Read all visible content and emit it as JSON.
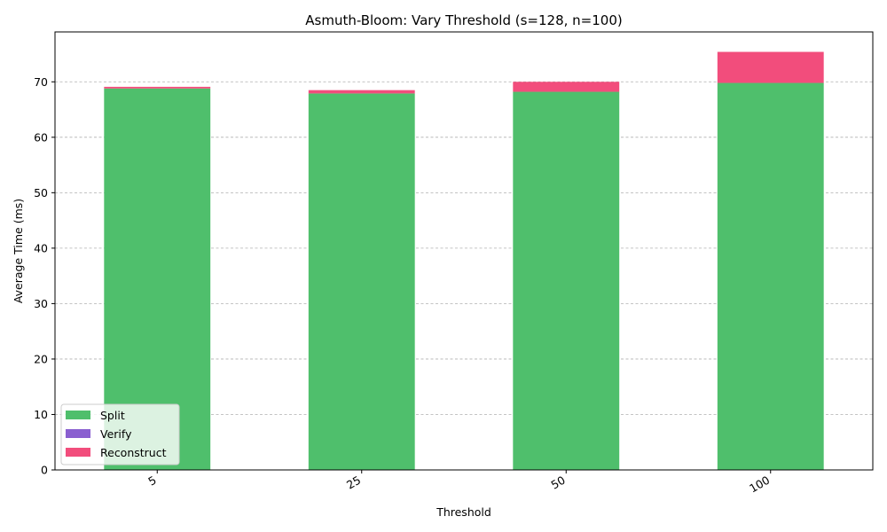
{
  "chart_data": {
    "type": "bar",
    "stacked": true,
    "title": "Asmuth-Bloom: Vary Threshold (s=128, n=100)",
    "xlabel": "Threshold",
    "ylabel": "Average Time (ms)",
    "categories": [
      "5",
      "25",
      "50",
      "100"
    ],
    "ylim": [
      0,
      79
    ],
    "yticks": [
      0,
      10,
      20,
      30,
      40,
      50,
      60,
      70
    ],
    "grid": true,
    "legend_position": "lower-left",
    "series": [
      {
        "name": "Split",
        "color": "#4fbf6c",
        "values": [
          68.8,
          67.9,
          68.2,
          69.8
        ]
      },
      {
        "name": "Verify",
        "color": "#8a5fd0",
        "values": [
          0,
          0,
          0,
          0
        ]
      },
      {
        "name": "Reconstruct",
        "color": "#f24d7c",
        "values": [
          0.3,
          0.6,
          1.8,
          5.6
        ]
      }
    ]
  }
}
